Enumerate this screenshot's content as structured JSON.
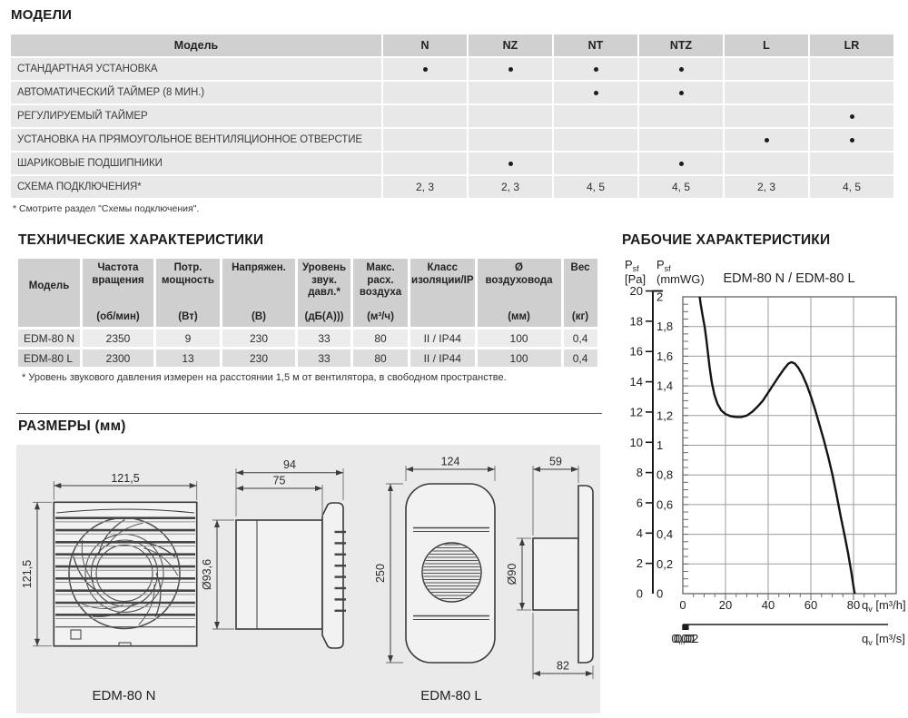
{
  "models": {
    "title": "МОДЕЛИ",
    "table": {
      "header": [
        "Модель",
        "N",
        "NZ",
        "NT",
        "NTZ",
        "L",
        "LR"
      ],
      "rows": [
        {
          "label": "СТАНДАРТНАЯ УСТАНОВКА",
          "values": [
            "•",
            "•",
            "•",
            "•",
            "",
            ""
          ]
        },
        {
          "label": "АВТОМАТИЧЕСКИЙ ТАЙМЕР (8 МИН.)",
          "values": [
            "",
            "",
            "•",
            "•",
            "",
            ""
          ]
        },
        {
          "label": "РЕГУЛИРУЕМЫЙ ТАЙМЕР",
          "values": [
            "",
            "",
            "",
            "",
            "",
            "•"
          ]
        },
        {
          "label": "УСТАНОВКА НА ПРЯМОУГОЛЬНОЕ ВЕНТИЛЯЦИОННОЕ ОТВЕРСТИЕ",
          "values": [
            "",
            "",
            "",
            "",
            "•",
            "•"
          ]
        },
        {
          "label": "ШАРИКОВЫЕ ПОДШИПНИКИ",
          "values": [
            "",
            "•",
            "",
            "•",
            "",
            ""
          ]
        },
        {
          "label": "СХЕМА ПОДКЛЮЧЕНИЯ*",
          "values": [
            "2, 3",
            "2, 3",
            "4, 5",
            "4, 5",
            "2, 3",
            "4, 5"
          ]
        }
      ]
    },
    "footnote": "* Смотрите раздел \"Схемы подключения\"."
  },
  "tech": {
    "title": "ТЕХНИЧЕСКИЕ ХАРАКТЕРИСТИКИ",
    "table": {
      "headers": [
        {
          "name": "Модель",
          "unit": ""
        },
        {
          "name": "Частота\nвращения",
          "unit": "(об/мин)"
        },
        {
          "name": "Потр.\nмощность",
          "unit": "(Вт)"
        },
        {
          "name": "Напряжен.",
          "unit": "(В)"
        },
        {
          "name": "Уровень\nзвук.\nдавл.*",
          "unit": "(дБ(А)))"
        },
        {
          "name": "Макс.\nрасх.\nвоздуха",
          "unit": "(м³/ч)"
        },
        {
          "name": "Класс\nизоляции/IP",
          "unit": ""
        },
        {
          "name": "Ø\nвоздуховода",
          "unit": "(мм)"
        },
        {
          "name": "Вес",
          "unit": "(кг)"
        }
      ],
      "rows": [
        [
          "EDM-80 N",
          "2350",
          "9",
          "230",
          "33",
          "80",
          "II / IP44",
          "100",
          "0,4"
        ],
        [
          "EDM-80 L",
          "2300",
          "13",
          "230",
          "33",
          "80",
          "II / IP44",
          "100",
          "0,4"
        ]
      ]
    },
    "footnote": "* Уровень звукового давления измерен на расстоянии 1,5 м от вентилятора, в свободном пространстве."
  },
  "dimensions": {
    "title": "РАЗМЕРЫ (мм)",
    "edm80n": {
      "label": "EDM-80 N",
      "front_width": "121,5",
      "front_height": "121,5",
      "depth_total": "94",
      "depth_body": "75",
      "duct_diameter": "Ø93,6"
    },
    "edm80l": {
      "label": "EDM-80 L",
      "front_width": "124",
      "front_height": "250",
      "plate_depth": "59",
      "duct_diameter": "Ø90",
      "total_depth": "82"
    }
  },
  "performance": {
    "title": "РАБОЧИЕ ХАРАКТЕРИСТИКИ"
  },
  "chart_data": {
    "type": "line",
    "title": "EDM-80 N / EDM-80 L",
    "grid": true,
    "x_axis": {
      "label_base": "q",
      "label_sub": "v",
      "label_unit": "[m³/h]",
      "max": 100,
      "minor_step": 5,
      "ticks": [
        {
          "v": 0,
          "t": "0"
        },
        {
          "v": 20,
          "t": "20"
        },
        {
          "v": 40,
          "t": "40"
        },
        {
          "v": 60,
          "t": "60"
        },
        {
          "v": 80,
          "t": "80"
        }
      ]
    },
    "x_axis2": {
      "label_base": "q",
      "label_sub": "v",
      "label_unit": "[m³/s]",
      "scale_to_primary": 3600,
      "ticks": [
        {
          "v": 0,
          "t": "0,00"
        },
        {
          "v": 0.005,
          "t": ""
        },
        {
          "v": 0.01,
          "t": "0,01"
        },
        {
          "v": 0.015,
          "t": ""
        },
        {
          "v": 0.02,
          "t": "0,02"
        },
        {
          "v": 0.025,
          "t": ""
        }
      ]
    },
    "y_axis_pa": {
      "label_base": "P",
      "label_sub": "sf",
      "label_unit": "[Pa]",
      "max": 20,
      "pa_per_mmwg": 9.80665,
      "ticks": [
        0,
        2,
        4,
        6,
        8,
        10,
        12,
        14,
        16,
        18,
        20
      ]
    },
    "y_axis_mmwg": {
      "label_base": "P",
      "label_sub": "sf",
      "label_unit": "(mmWG)",
      "max": 2,
      "minor_step": 0.05,
      "ticks": [
        {
          "v": 0,
          "t": "0"
        },
        {
          "v": 0.2,
          "t": "0,2"
        },
        {
          "v": 0.4,
          "t": "0,4"
        },
        {
          "v": 0.6,
          "t": "0,6"
        },
        {
          "v": 0.8,
          "t": "0,8"
        },
        {
          "v": 1,
          "t": "1"
        },
        {
          "v": 1.2,
          "t": "1,2"
        },
        {
          "v": 1.4,
          "t": "1,4"
        },
        {
          "v": 1.6,
          "t": "1,6"
        },
        {
          "v": 1.8,
          "t": "1,8"
        },
        {
          "v": 2,
          "t": "2"
        }
      ]
    },
    "series": [
      {
        "name": "EDM-80 N / EDM-80 L",
        "x_unit": "m³/h",
        "y_unit": "mmWG",
        "points": [
          [
            7.7,
            2.02
          ],
          [
            8.4,
            1.95
          ],
          [
            9.2,
            1.88
          ],
          [
            10.2,
            1.8
          ],
          [
            11.0,
            1.72
          ],
          [
            11.8,
            1.62
          ],
          [
            12.6,
            1.52
          ],
          [
            13.6,
            1.42
          ],
          [
            14.8,
            1.34
          ],
          [
            16.2,
            1.28
          ],
          [
            18.0,
            1.235
          ],
          [
            20.0,
            1.21
          ],
          [
            22.5,
            1.195
          ],
          [
            25.0,
            1.19
          ],
          [
            27.5,
            1.19
          ],
          [
            30.0,
            1.2
          ],
          [
            32.5,
            1.225
          ],
          [
            35.0,
            1.26
          ],
          [
            37.5,
            1.3
          ],
          [
            40.0,
            1.355
          ],
          [
            42.5,
            1.41
          ],
          [
            45.0,
            1.465
          ],
          [
            47.5,
            1.515
          ],
          [
            49.5,
            1.55
          ],
          [
            51.0,
            1.56
          ],
          [
            52.5,
            1.55
          ],
          [
            54.0,
            1.525
          ],
          [
            56.0,
            1.475
          ],
          [
            58.0,
            1.41
          ],
          [
            60.0,
            1.33
          ],
          [
            62.0,
            1.24
          ],
          [
            64.0,
            1.14
          ],
          [
            66.0,
            1.04
          ],
          [
            68.0,
            0.93
          ],
          [
            70.0,
            0.81
          ],
          [
            72.0,
            0.67
          ],
          [
            74.0,
            0.52
          ],
          [
            76.0,
            0.38
          ],
          [
            77.5,
            0.27
          ],
          [
            79.0,
            0.14
          ],
          [
            80.3,
            0.02
          ],
          [
            80.6,
            0.0
          ]
        ]
      }
    ]
  }
}
